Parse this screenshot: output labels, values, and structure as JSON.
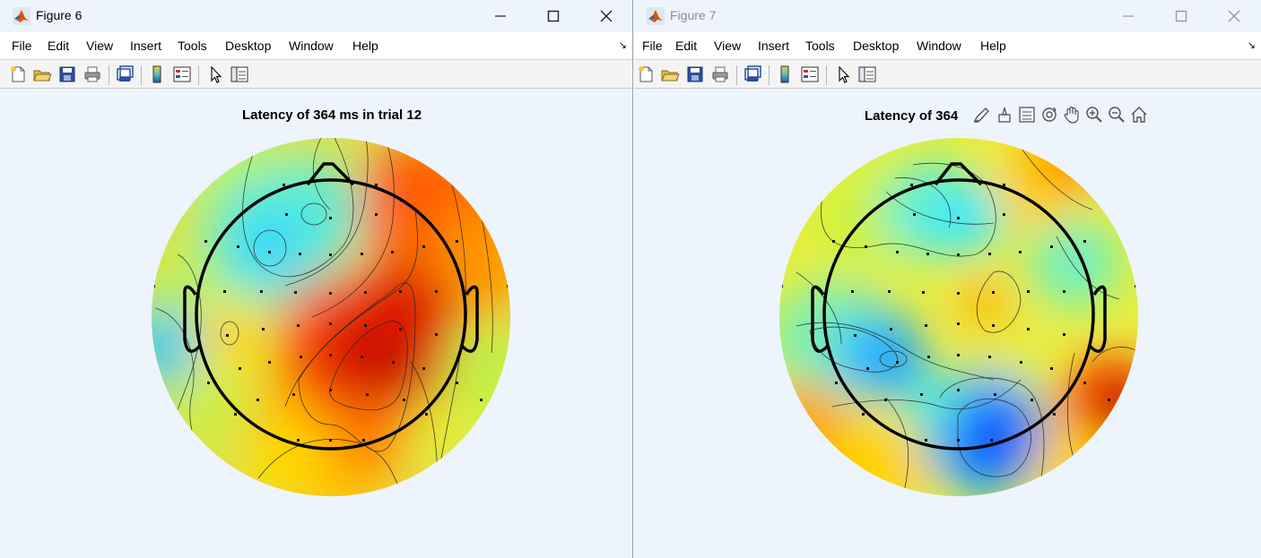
{
  "window6": {
    "title": "Figure 6",
    "menu": [
      "File",
      "Edit",
      "View",
      "Insert",
      "Tools",
      "Desktop",
      "Window",
      "Help"
    ],
    "plot_title": "Latency of 364 ms in trial 12"
  },
  "window7": {
    "title": "Figure 7",
    "menu": [
      "File",
      "Edit",
      "View",
      "Insert",
      "Tools",
      "Desktop",
      "Window",
      "Help"
    ],
    "plot_title": "Latency of 364",
    "axes_toolbar": [
      "brush-icon",
      "data-cursor-icon",
      "legend-icon",
      "rotate-icon",
      "pan-icon",
      "zoom-in-icon",
      "zoom-out-icon",
      "home-icon"
    ]
  },
  "colors": {
    "background": "#eef4fb",
    "menubar": "#ffffff",
    "toolbar": "#f4f4f4"
  }
}
